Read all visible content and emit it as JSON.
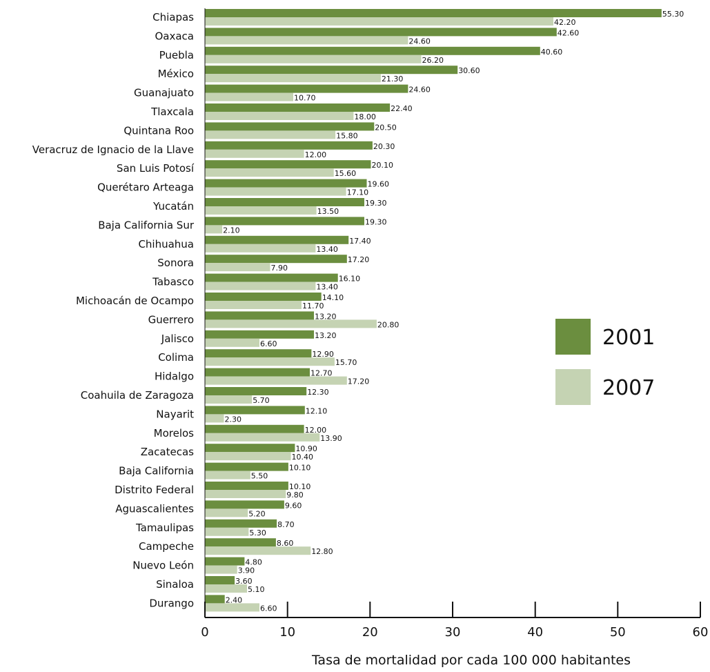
{
  "chart_data": {
    "type": "bar",
    "orientation": "horizontal",
    "categories": [
      "Chiapas",
      "Oaxaca",
      "Puebla",
      "México",
      "Guanajuato",
      "Tlaxcala",
      "Quintana Roo",
      "Veracruz de Ignacio de la Llave",
      "San Luis Potosí",
      "Querétaro Arteaga",
      "Yucatán",
      "Baja California Sur",
      "Chihuahua",
      "Sonora",
      "Tabasco",
      "Michoacán de Ocampo",
      "Guerrero",
      "Jalisco",
      "Colima",
      "Hidalgo",
      "Coahuila de Zaragoza",
      "Nayarit",
      "Morelos",
      "Zacatecas",
      "Baja California",
      "Distrito Federal",
      "Aguascalientes",
      "Tamaulipas",
      "Campeche",
      "Nuevo León",
      "Sinaloa",
      "Durango"
    ],
    "series": [
      {
        "name": "2001",
        "color": "#6b8e3f",
        "values": [
          55.3,
          42.6,
          40.6,
          30.6,
          24.6,
          22.4,
          20.5,
          20.3,
          20.1,
          19.6,
          19.3,
          19.3,
          17.4,
          17.2,
          16.1,
          14.1,
          13.2,
          13.2,
          12.9,
          12.7,
          12.3,
          12.1,
          12.0,
          10.9,
          10.1,
          10.1,
          9.6,
          8.7,
          8.6,
          4.8,
          3.6,
          2.4
        ],
        "labels": [
          "55.30",
          "42.60",
          "40.60",
          "30.60",
          "24.60",
          "22.40",
          "20.50",
          "20.30",
          "20.10",
          "19.60",
          "19.30",
          "19.30",
          "17.40",
          "17.20",
          "16.10",
          "14.10",
          "13.20",
          "13.20",
          "12.90",
          "12.70",
          "12.30",
          "12.10",
          "12.00",
          "10.90",
          "10.10",
          "10.10",
          "9.60",
          "8.70",
          "8.60",
          "4.80",
          "3.60",
          "2.40"
        ]
      },
      {
        "name": "2007",
        "color": "#c5d3b3",
        "values": [
          42.2,
          24.6,
          26.2,
          21.3,
          10.7,
          18.0,
          15.8,
          12.0,
          15.6,
          17.1,
          13.5,
          2.1,
          13.4,
          7.9,
          13.4,
          11.7,
          20.8,
          6.6,
          15.7,
          17.2,
          5.7,
          2.3,
          13.9,
          10.4,
          5.5,
          9.8,
          5.2,
          5.3,
          12.8,
          3.9,
          5.1,
          6.6
        ],
        "labels": [
          "42.20",
          "24.60",
          "26.20",
          "21.30",
          "10.70",
          "18.00",
          "15.80",
          "12.00",
          "15.60",
          "17.10",
          "13.50",
          "2.10",
          "13.40",
          "7.90",
          "13.40",
          "11.70",
          "20.80",
          "6.60",
          "15.70",
          "17.20",
          "5.70",
          "2.30",
          "13.90",
          "10.40",
          "5.50",
          "9.80",
          "5.20",
          "5.30",
          "12.80",
          "3.90",
          "5.10",
          "6.60"
        ]
      }
    ],
    "xlim": [
      0,
      60
    ],
    "xticks": [
      "0",
      "10",
      "20",
      "30",
      "40",
      "50",
      "60"
    ],
    "xlabel": "Tasa de mortalidad por cada 100 000 habitantes",
    "legend_placement": "right",
    "grid": false
  }
}
